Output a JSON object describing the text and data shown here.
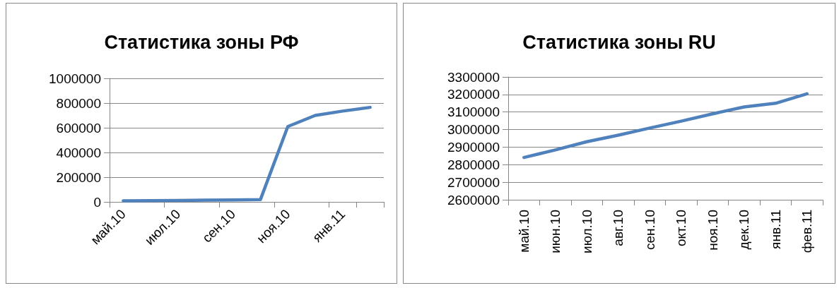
{
  "chart_data": [
    {
      "type": "line",
      "title": "Статистика зоны РФ",
      "categories": [
        "май.10",
        null,
        "июл.10",
        null,
        "сен.10",
        null,
        "ноя.10",
        null,
        "янв.11",
        null
      ],
      "series": [
        {
          "color": "#4f81bd",
          "values": [
            8000,
            10000,
            12000,
            14000,
            16000,
            18000,
            610000,
            700000,
            735000,
            765000
          ]
        }
      ],
      "ylim": [
        0,
        1000000
      ],
      "yticks": [
        0,
        200000,
        400000,
        600000,
        800000,
        1000000
      ],
      "grid": "y",
      "marker": "none"
    },
    {
      "type": "line",
      "title": "Статистика зоны RU",
      "categories": [
        "май.10",
        "июн.10",
        "июл.10",
        "авг.10",
        "сен.10",
        "окт.10",
        "ноя.10",
        "дек.10",
        "янв.11",
        "фев.11"
      ],
      "series": [
        {
          "color": "#4f81bd",
          "values": [
            2841000,
            2884000,
            2931000,
            2968000,
            3009000,
            3048000,
            3090000,
            3129000,
            3150000,
            3204000
          ]
        }
      ],
      "ylim": [
        2600000,
        3300000
      ],
      "yticks": [
        2600000,
        2700000,
        2800000,
        2900000,
        3000000,
        3100000,
        3200000,
        3300000
      ],
      "grid": "y",
      "marker": "none"
    }
  ]
}
